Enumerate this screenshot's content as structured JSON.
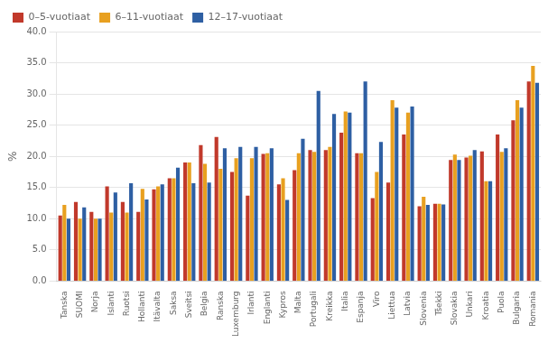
{
  "chart_data": {
    "type": "bar",
    "ylabel": "%",
    "categories": [
      "Tanska",
      "SUOMI",
      "Norja",
      "Islanti",
      "Ruotsi",
      "Hollanti",
      "Itävalta",
      "Saksa",
      "Sveitsi",
      "Belgia",
      "Ranska",
      "Luxemburg",
      "Irlanti",
      "Englanti",
      "Kypros",
      "Malta",
      "Portugali",
      "Kreikka",
      "Italia",
      "Espanja",
      "Viro",
      "Liettua",
      "Latvia",
      "Slovenia",
      "Tšekki",
      "Slovakia",
      "Unkari",
      "Kroatia",
      "Puola",
      "Bulgaria",
      "Romania"
    ],
    "series": [
      {
        "name": "0–5-vuotiaat",
        "color": "#C1392B",
        "values": [
          10.5,
          12.7,
          11.1,
          15.2,
          12.7,
          11.1,
          14.7,
          16.5,
          19.0,
          21.8,
          23.1,
          17.5,
          13.7,
          20.4,
          15.5,
          17.8,
          21.0,
          21.0,
          23.8,
          20.5,
          13.3,
          15.8,
          23.5,
          12.0,
          12.4,
          19.4,
          19.8,
          20.8,
          23.5,
          25.8,
          32.0
        ]
      },
      {
        "name": "6–11-vuotiaat",
        "color": "#E8A020",
        "values": [
          12.2,
          10.0,
          10.0,
          11.0,
          11.0,
          14.8,
          15.2,
          16.5,
          19.0,
          18.8,
          18.0,
          19.7,
          19.7,
          20.5,
          16.5,
          20.5,
          20.7,
          21.5,
          27.2,
          20.5,
          17.5,
          29.0,
          27.0,
          13.5,
          12.4,
          20.3,
          20.1,
          16.0,
          20.7,
          29.0,
          34.5
        ]
      },
      {
        "name": "12–17-vuotiaat",
        "color": "#2E5FA3",
        "values": [
          10.0,
          11.8,
          10.0,
          14.2,
          15.7,
          13.1,
          15.5,
          18.2,
          15.7,
          15.8,
          21.3,
          21.5,
          21.5,
          21.3,
          13.0,
          22.8,
          30.5,
          26.8,
          27.0,
          32.0,
          22.3,
          27.8,
          28.0,
          12.2,
          12.3,
          19.4,
          21.0,
          16.0,
          21.3,
          27.8,
          31.8
        ]
      }
    ],
    "ylim": [
      0,
      40
    ],
    "yticks": [
      {
        "value": 0,
        "label": "0.0"
      },
      {
        "value": 5,
        "label": "5.0"
      },
      {
        "value": 10,
        "label": "10.0"
      },
      {
        "value": 15,
        "label": "15.0"
      },
      {
        "value": 20,
        "label": "20.0"
      },
      {
        "value": 25,
        "label": "25.0"
      },
      {
        "value": 30,
        "label": "30.0"
      },
      {
        "value": 35,
        "label": "35.0"
      },
      {
        "value": 40,
        "label": "40.0"
      }
    ],
    "grid": true,
    "legend": "upper left"
  }
}
